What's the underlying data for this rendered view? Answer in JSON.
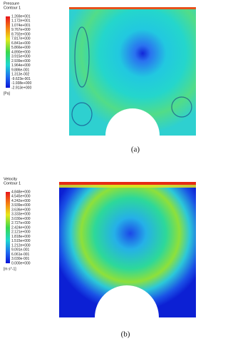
{
  "panels": [
    {
      "legend": {
        "title": [
          "Pressure",
          "Contour 1"
        ],
        "labels": [
          "1.269e+001",
          "1.172e+001",
          "1.074e+001",
          "9.767e+000",
          "8.792e+000",
          "7.817e+000",
          "6.841e+000",
          "5.866e+000",
          "4.890e+000",
          "3.915e+000",
          "2.939e+000",
          "1.964e+000",
          "9.886e-001",
          "1.313e-002",
          "-9.623e-001",
          "-1.938e+000",
          "-2.913e+000"
        ],
        "unit": "[Pa]"
      },
      "caption": "(a)"
    },
    {
      "legend": {
        "title": [
          "Velocity",
          "Contour 1"
        ],
        "labels": [
          "4.848e+000",
          "4.545e+000",
          "4.242e+000",
          "3.939e+000",
          "3.636e+000",
          "3.333e+000",
          "3.030e+000",
          "2.727e+000",
          "2.424e+000",
          "2.121e+000",
          "1.818e+000",
          "1.515e+000",
          "1.212e+000",
          "9.091e-001",
          "6.061e-001",
          "3.030e-001",
          "0.000e+000"
        ],
        "unit": "[m s^-1]"
      },
      "caption": "(b)"
    }
  ]
}
